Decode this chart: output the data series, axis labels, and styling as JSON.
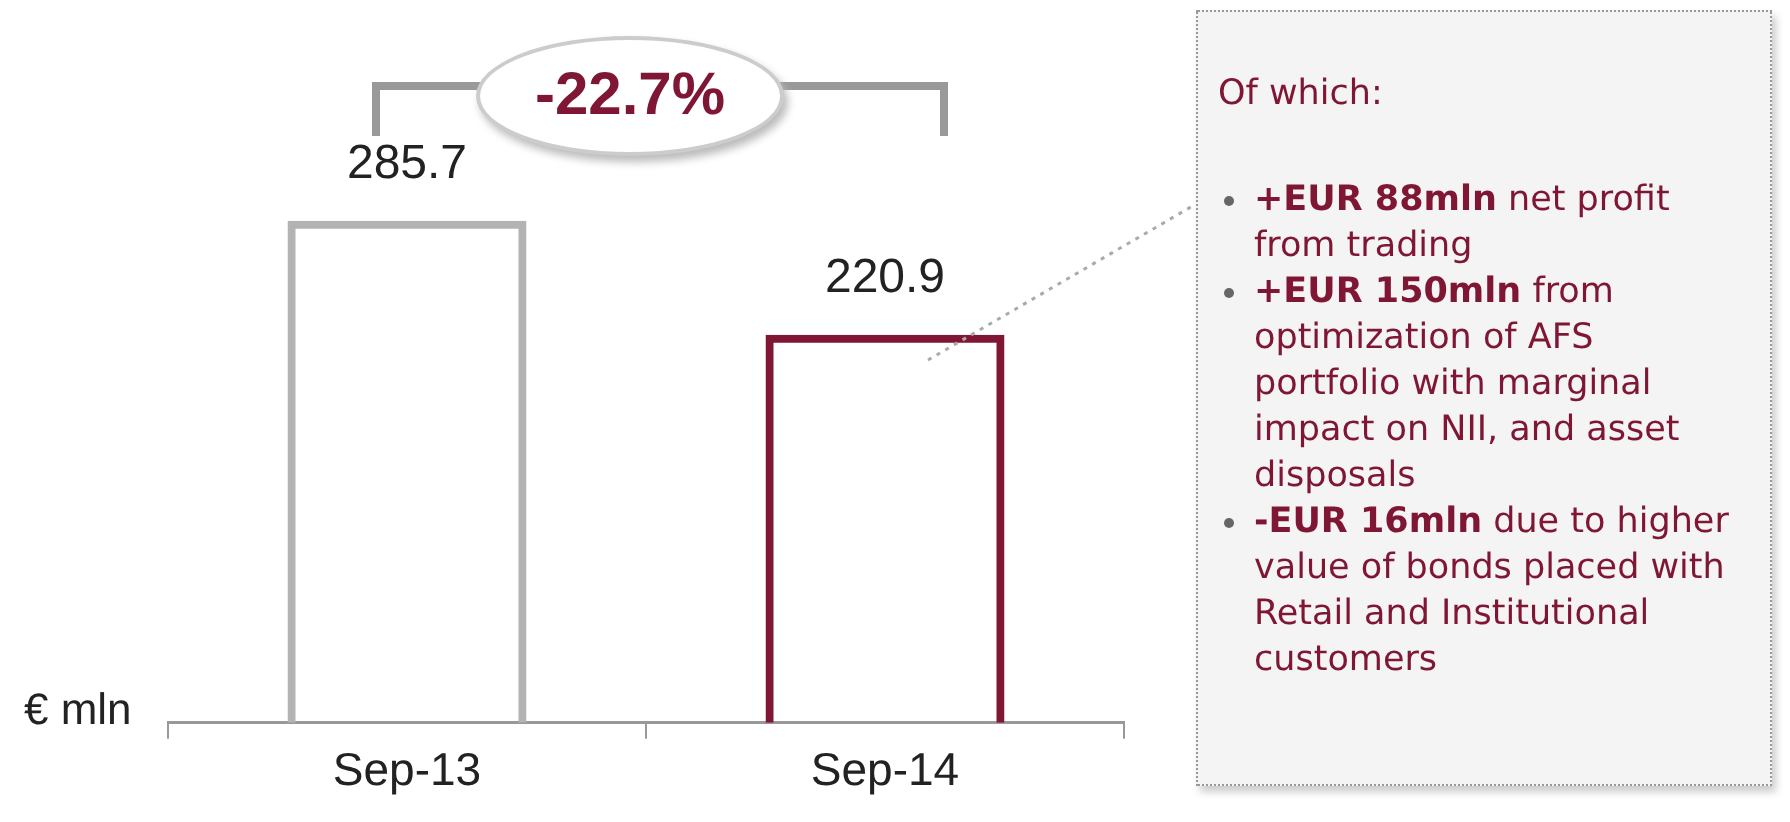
{
  "chart_data": {
    "type": "bar",
    "categories": [
      "Sep-13",
      "Sep-14"
    ],
    "values": [
      285.7,
      220.9
    ],
    "colors": [
      "#b3b3b3",
      "#7f1734"
    ],
    "ylabel": "€ mln",
    "data_labels": true,
    "grid": false,
    "legend": false,
    "annotations": [
      "-22.7%",
      "Of which:",
      "+EUR 88mln net profit from trading",
      "+EUR 150mln from optimization of AFS portfolio with marginal impact on NII, and asset disposals",
      "-EUR 16mln due to higher value of bonds placed with Retail and Institutional customers"
    ]
  }
}
